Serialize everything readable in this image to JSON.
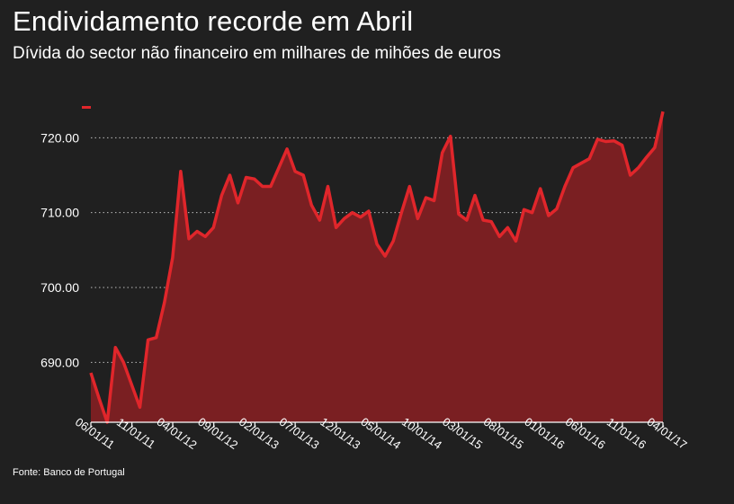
{
  "title": "Endividamento recorde em Abril",
  "subtitle": "Dívida do sector não financeiro em milhares de mihões de euros",
  "source": "Fonte: Banco de Portugal",
  "colors": {
    "background": "#202020",
    "line": "#e0262b",
    "area": "#7a1f22",
    "grid": "#bbbbbb",
    "text": "#ffffff"
  },
  "chart_data": {
    "type": "area",
    "title": "Endividamento recorde em Abril",
    "subtitle": "Dívida do sector não financeiro em milhares de mihões de euros",
    "xlabel": "",
    "ylabel": "",
    "ylim": [
      682,
      724
    ],
    "xlim": [
      "2011-06-01",
      "2017-04-01"
    ],
    "grid": true,
    "yticks": [
      690,
      700,
      710,
      720
    ],
    "ytick_labels": [
      "690.00",
      "700.00",
      "710.00",
      "720.00"
    ],
    "xticks": [
      "2011-06-01",
      "2011-11-01",
      "2012-04-01",
      "2012-09-01",
      "2013-02-01",
      "2013-07-01",
      "2013-12-01",
      "2014-05-01",
      "2014-10-01",
      "2015-03-01",
      "2015-08-01",
      "2016-01-01",
      "2016-06-01",
      "2016-11-01",
      "2017-04-01"
    ],
    "xtick_labels": [
      "06/01/11",
      "11/01/11",
      "04/01/12",
      "09/01/12",
      "02/01/13",
      "07/01/13",
      "12/01/13",
      "05/01/14",
      "10/01/14",
      "03/01/15",
      "08/01/15",
      "01/01/16",
      "06/01/16",
      "11/01/16",
      "04/01/17"
    ],
    "series": [
      {
        "values": [
          688.6,
          685.2,
          682.0,
          692.0,
          690.0,
          687.0,
          684.0,
          693.0,
          693.3,
          698.0,
          704.0,
          715.5,
          706.5,
          707.5,
          706.8,
          708.0,
          712.3,
          715.0,
          711.3,
          714.7,
          714.5,
          713.5,
          713.5,
          716.0,
          718.5,
          715.5,
          715.0,
          711.0,
          709.0,
          713.5,
          708.0,
          709.2,
          710.0,
          709.4,
          710.2,
          705.8,
          704.2,
          706.2,
          710.0,
          713.5,
          709.2,
          712.0,
          711.6,
          718.0,
          720.2,
          709.8,
          709.0,
          712.3,
          709.0,
          708.8,
          706.8,
          708.0,
          706.2,
          710.4,
          710.0,
          713.2,
          709.6,
          710.5,
          713.5,
          716.0,
          716.6,
          717.2,
          719.8,
          719.5,
          719.6,
          719.0,
          715.0,
          716.0,
          717.4,
          718.7,
          723.5
        ]
      }
    ]
  }
}
